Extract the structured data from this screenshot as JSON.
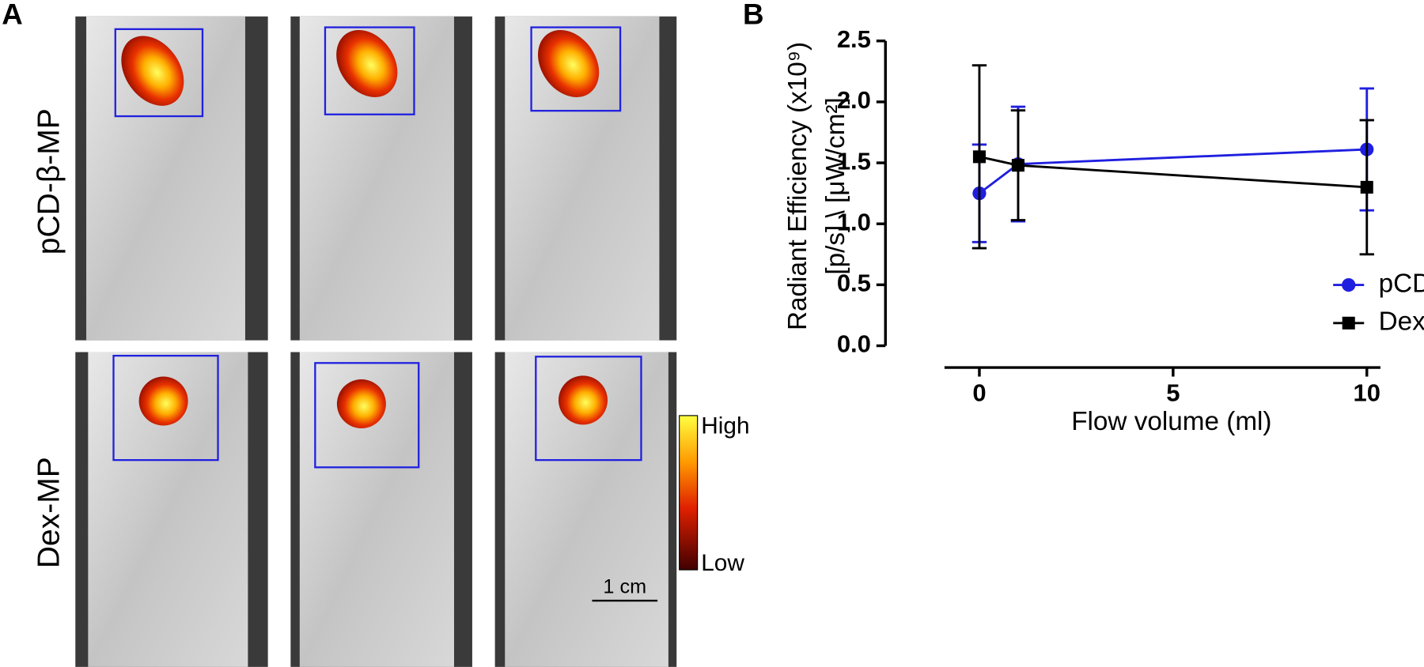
{
  "panel_a": {
    "label": "A",
    "row_labels": [
      "pCD-β-MP",
      "Dex-MP"
    ],
    "colorbar": {
      "high": "High",
      "low": "Low"
    },
    "scale_bar": "1 cm"
  },
  "chart_data": {
    "type": "line",
    "panel_label": "B",
    "xlabel": "Flow volume (ml)",
    "ylabel": [
      "Radiant Efficiency (x10⁹)",
      "[p/s] \\ [μW/cm²]"
    ],
    "x": [
      0,
      1,
      10
    ],
    "series": [
      {
        "name": "pCD-β-MP",
        "color": "#1f1fe0",
        "marker": "circle",
        "values": [
          1.25,
          1.49,
          1.61
        ],
        "errors": [
          0.4,
          0.47,
          0.5
        ]
      },
      {
        "name": "Dex-MP",
        "color": "#000000",
        "marker": "square",
        "values": [
          1.55,
          1.48,
          1.3
        ],
        "errors": [
          0.75,
          0.45,
          0.55
        ]
      }
    ],
    "xlim": [
      -0.9,
      10.35
    ],
    "ylim": [
      0,
      2.5
    ],
    "xticks": [
      0,
      5,
      10
    ],
    "yticks": [
      {
        "value": 0,
        "label": "0.0"
      },
      0.5,
      {
        "value": 1,
        "label": "1.0"
      },
      1.5,
      {
        "value": 2,
        "label": "2.0"
      },
      2.5
    ],
    "legend": "right",
    "grid": false
  }
}
